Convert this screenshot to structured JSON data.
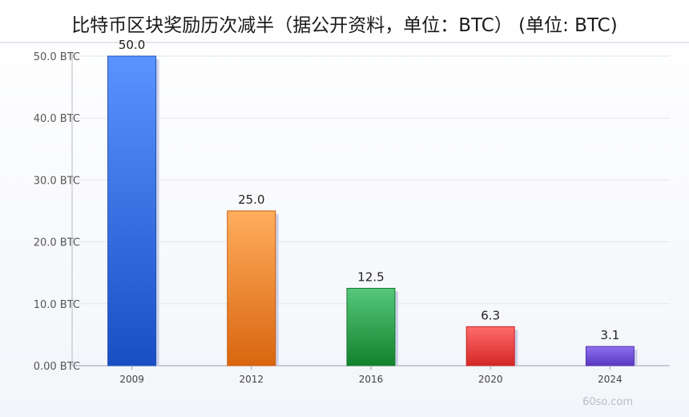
{
  "header": {
    "title": "比特币区块奖励历次减半（据公开资料，单位：BTC） (单位: BTC)"
  },
  "watermark": "60so.com",
  "chart_data": {
    "type": "bar",
    "title": "比特币区块奖励历次减半（据公开资料，单位：BTC） (单位: BTC)",
    "xlabel": "",
    "ylabel": "",
    "categories": [
      "2009",
      "2012",
      "2016",
      "2020",
      "2024"
    ],
    "values": [
      50.0,
      25.0,
      12.5,
      6.3,
      3.1
    ],
    "value_labels": [
      "50.0",
      "25.0",
      "12.5",
      "6.3",
      "3.1"
    ],
    "ylim": [
      0,
      50
    ],
    "yticks": [
      0,
      10,
      20,
      30,
      40,
      50
    ],
    "ytick_labels": [
      "0.00 BTC",
      "10.0 BTC",
      "20.0 BTC",
      "30.0 BTC",
      "40.0 BTC",
      "50.0 BTC"
    ],
    "grid": true,
    "legend": "none",
    "bar_colors": [
      {
        "top": "#5b93ff",
        "bottom": "#1a4fc4",
        "edge": "#1f4fb5"
      },
      {
        "top": "#ffae5e",
        "bottom": "#d9660f",
        "edge": "#c55c10"
      },
      {
        "top": "#56c77b",
        "bottom": "#13822d",
        "edge": "#167a2e"
      },
      {
        "top": "#ff6b6b",
        "bottom": "#d42727",
        "edge": "#c02525"
      },
      {
        "top": "#8f6ff0",
        "bottom": "#5a38c2",
        "edge": "#4f33a8"
      }
    ],
    "shadow_color": "#c6cbe6"
  }
}
